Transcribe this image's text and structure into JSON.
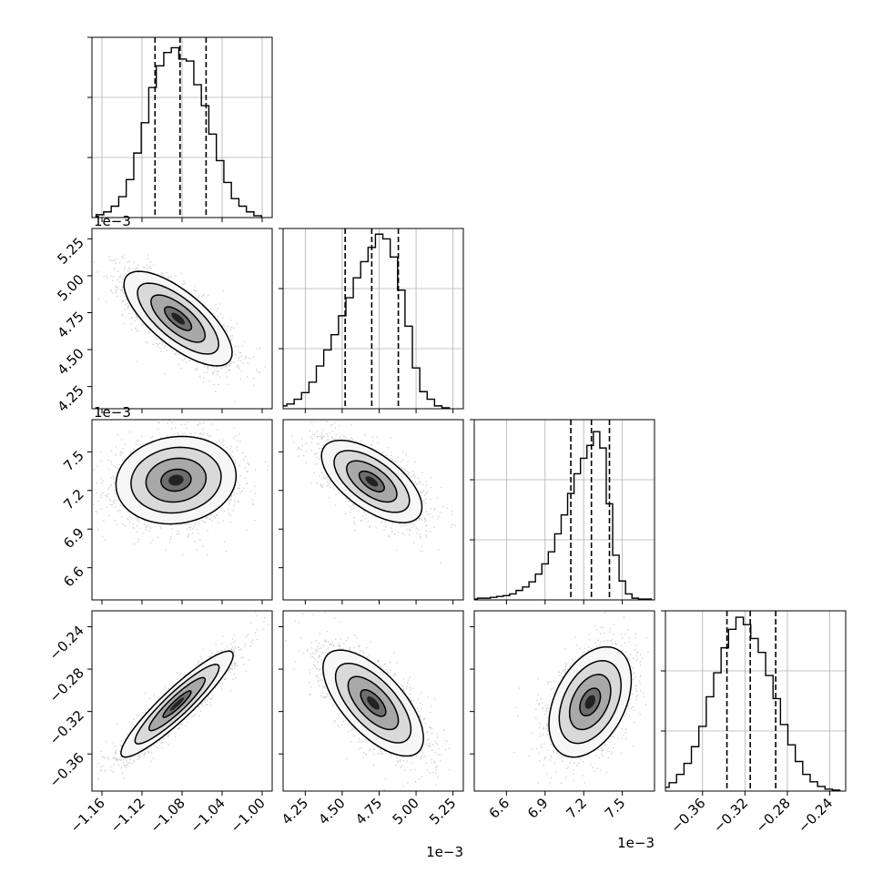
{
  "chart_data": {
    "type": "corner",
    "params": [
      {
        "range": [
          -1.17,
          -0.99
        ],
        "ticks": [
          -1.16,
          -1.12,
          -1.08,
          -1.04,
          -1.0
        ],
        "tick_labels": [
          "−1.16",
          "−1.12",
          "−1.08",
          "−1.04",
          "−1.00"
        ],
        "offset_label": "1e−3",
        "quantiles": [
          -1.107,
          -1.082,
          -1.056
        ],
        "hist": [
          {
            "x": -1.162,
            "c": 3
          },
          {
            "x": -1.1545,
            "c": 6
          },
          {
            "x": -1.147,
            "c": 12
          },
          {
            "x": -1.1395,
            "c": 22
          },
          {
            "x": -1.132,
            "c": 40
          },
          {
            "x": -1.1245,
            "c": 68
          },
          {
            "x": -1.117,
            "c": 100
          },
          {
            "x": -1.1095,
            "c": 137
          },
          {
            "x": -1.102,
            "c": 160
          },
          {
            "x": -1.0945,
            "c": 174
          },
          {
            "x": -1.087,
            "c": 179
          },
          {
            "x": -1.0795,
            "c": 167
          },
          {
            "x": -1.072,
            "c": 165
          },
          {
            "x": -1.0645,
            "c": 140
          },
          {
            "x": -1.057,
            "c": 118
          },
          {
            "x": -1.0495,
            "c": 88
          },
          {
            "x": -1.042,
            "c": 60
          },
          {
            "x": -1.0345,
            "c": 37
          },
          {
            "x": -1.027,
            "c": 20
          },
          {
            "x": -1.0195,
            "c": 12
          },
          {
            "x": -1.012,
            "c": 6
          },
          {
            "x": -1.0045,
            "c": 2
          }
        ],
        "hist_max": 190
      },
      {
        "range": [
          4.1,
          5.32
        ],
        "ticks": [
          4.25,
          4.5,
          4.75,
          5.0,
          5.25
        ],
        "tick_labels": [
          "4.25",
          "4.50",
          "4.75",
          "5.00",
          "5.25"
        ],
        "offset_label": "1e−3",
        "quantiles": [
          4.52,
          4.7,
          4.88
        ],
        "hist": [
          {
            "x": 4.1,
            "c": 3
          },
          {
            "x": 4.15,
            "c": 5
          },
          {
            "x": 4.2,
            "c": 10
          },
          {
            "x": 4.25,
            "c": 17
          },
          {
            "x": 4.3,
            "c": 28
          },
          {
            "x": 4.35,
            "c": 45
          },
          {
            "x": 4.4,
            "c": 62
          },
          {
            "x": 4.45,
            "c": 78
          },
          {
            "x": 4.5,
            "c": 98
          },
          {
            "x": 4.55,
            "c": 117
          },
          {
            "x": 4.6,
            "c": 138
          },
          {
            "x": 4.65,
            "c": 155
          },
          {
            "x": 4.7,
            "c": 170
          },
          {
            "x": 4.75,
            "c": 184
          },
          {
            "x": 4.8,
            "c": 179
          },
          {
            "x": 4.85,
            "c": 160
          },
          {
            "x": 4.9,
            "c": 125
          },
          {
            "x": 4.95,
            "c": 87
          },
          {
            "x": 5.0,
            "c": 43
          },
          {
            "x": 5.05,
            "c": 18
          },
          {
            "x": 5.1,
            "c": 10
          },
          {
            "x": 5.15,
            "c": 3
          },
          {
            "x": 5.2,
            "c": 1
          }
        ],
        "hist_max": 190
      },
      {
        "range": [
          6.35,
          7.75
        ],
        "ticks": [
          6.6,
          6.9,
          7.2,
          7.5
        ],
        "tick_labels": [
          "6.6",
          "6.9",
          "7.2",
          "7.5"
        ],
        "offset_label": "1e−3",
        "quantiles": [
          7.1,
          7.26,
          7.4
        ],
        "hist": [
          {
            "x": 6.35,
            "c": 1
          },
          {
            "x": 6.4,
            "c": 2
          },
          {
            "x": 6.45,
            "c": 2
          },
          {
            "x": 6.5,
            "c": 3
          },
          {
            "x": 6.55,
            "c": 4
          },
          {
            "x": 6.6,
            "c": 5
          },
          {
            "x": 6.65,
            "c": 7
          },
          {
            "x": 6.7,
            "c": 11
          },
          {
            "x": 6.75,
            "c": 15
          },
          {
            "x": 6.8,
            "c": 21
          },
          {
            "x": 6.85,
            "c": 30
          },
          {
            "x": 6.9,
            "c": 42
          },
          {
            "x": 6.95,
            "c": 56
          },
          {
            "x": 7.0,
            "c": 77
          },
          {
            "x": 7.05,
            "c": 99
          },
          {
            "x": 7.1,
            "c": 124
          },
          {
            "x": 7.15,
            "c": 147
          },
          {
            "x": 7.2,
            "c": 165
          },
          {
            "x": 7.25,
            "c": 180
          },
          {
            "x": 7.3,
            "c": 196
          },
          {
            "x": 7.35,
            "c": 177
          },
          {
            "x": 7.4,
            "c": 112
          },
          {
            "x": 7.45,
            "c": 52
          },
          {
            "x": 7.5,
            "c": 22
          },
          {
            "x": 7.55,
            "c": 7
          },
          {
            "x": 7.6,
            "c": 2
          },
          {
            "x": 7.65,
            "c": 1
          },
          {
            "x": 7.7,
            "c": 1
          }
        ],
        "hist_max": 210
      },
      {
        "range": [
          -0.395,
          -0.225
        ],
        "ticks": [
          -0.36,
          -0.32,
          -0.28,
          -0.24
        ],
        "tick_labels": [
          "−0.36",
          "−0.32",
          "−0.28",
          "−0.24"
        ],
        "offset_label": "",
        "quantiles": [
          -0.337,
          -0.315,
          -0.291
        ],
        "hist": [
          {
            "x": -0.395,
            "c": 4
          },
          {
            "x": -0.388,
            "c": 9
          },
          {
            "x": -0.381,
            "c": 18
          },
          {
            "x": -0.374,
            "c": 30
          },
          {
            "x": -0.367,
            "c": 48
          },
          {
            "x": -0.36,
            "c": 70
          },
          {
            "x": -0.353,
            "c": 102
          },
          {
            "x": -0.346,
            "c": 128
          },
          {
            "x": -0.339,
            "c": 155
          },
          {
            "x": -0.332,
            "c": 175
          },
          {
            "x": -0.325,
            "c": 188
          },
          {
            "x": -0.318,
            "c": 180
          },
          {
            "x": -0.311,
            "c": 165
          },
          {
            "x": -0.304,
            "c": 150
          },
          {
            "x": -0.297,
            "c": 125
          },
          {
            "x": -0.29,
            "c": 100
          },
          {
            "x": -0.283,
            "c": 72
          },
          {
            "x": -0.276,
            "c": 50
          },
          {
            "x": -0.269,
            "c": 32
          },
          {
            "x": -0.262,
            "c": 18
          },
          {
            "x": -0.255,
            "c": 10
          },
          {
            "x": -0.248,
            "c": 5
          },
          {
            "x": -0.241,
            "c": 2
          },
          {
            "x": -0.234,
            "c": 1
          }
        ],
        "hist_max": 195
      }
    ],
    "pairs": [
      {
        "row": 1,
        "col": 0,
        "mean": [
          -1.084,
          4.71
        ],
        "sd": [
          0.027,
          0.16
        ],
        "rho": -0.72
      },
      {
        "row": 2,
        "col": 0,
        "mean": [
          -1.086,
          7.28
        ],
        "sd": [
          0.03,
          0.17
        ],
        "rho": 0.1
      },
      {
        "row": 2,
        "col": 1,
        "mean": [
          4.7,
          7.27
        ],
        "sd": [
          0.17,
          0.16
        ],
        "rho": -0.62
      },
      {
        "row": 3,
        "col": 0,
        "mean": [
          -1.085,
          -0.313
        ],
        "sd": [
          0.028,
          0.025
        ],
        "rho": 0.92
      },
      {
        "row": 3,
        "col": 1,
        "mean": [
          4.71,
          -0.312
        ],
        "sd": [
          0.17,
          0.025
        ],
        "rho": -0.66
      },
      {
        "row": 3,
        "col": 2,
        "mean": [
          7.25,
          -0.311
        ],
        "sd": [
          0.16,
          0.026
        ],
        "rho": 0.4
      }
    ],
    "contour_levels_sigma": [
      0.5,
      1.0,
      1.5,
      2.0
    ],
    "grid": true
  }
}
